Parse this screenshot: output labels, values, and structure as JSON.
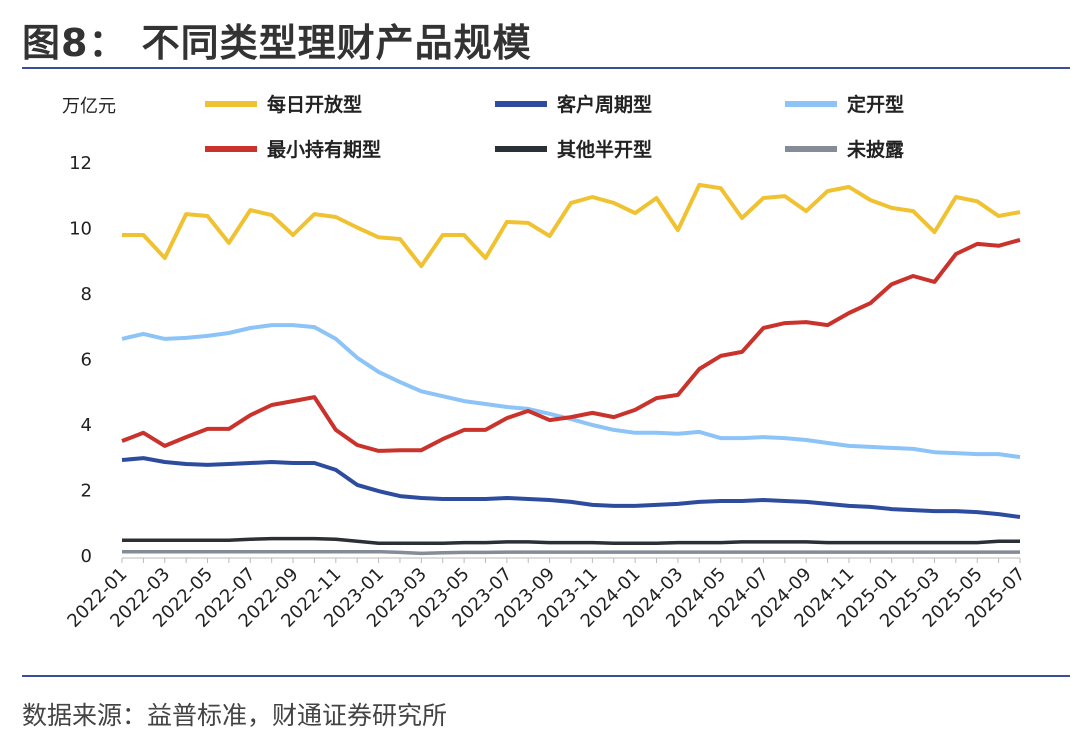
{
  "title": "图8： 不同类型理财产品规模",
  "source": "数据来源：益普标准，财通证券研究所",
  "chart_data": {
    "type": "line",
    "title": "图8： 不同类型理财产品规模",
    "ylabel": "万亿元",
    "ylim": [
      0,
      12
    ],
    "yticks": [
      0,
      2,
      4,
      6,
      8,
      10,
      12
    ],
    "grid": false,
    "legend": "top",
    "x": [
      "2022-01",
      "2022-02",
      "2022-03",
      "2022-04",
      "2022-05",
      "2022-06",
      "2022-07",
      "2022-08",
      "2022-09",
      "2022-10",
      "2022-11",
      "2022-12",
      "2023-01",
      "2023-02",
      "2023-03",
      "2023-04",
      "2023-05",
      "2023-06",
      "2023-07",
      "2023-08",
      "2023-09",
      "2023-10",
      "2023-11",
      "2023-12",
      "2024-01",
      "2024-02",
      "2024-03",
      "2024-04",
      "2024-05",
      "2024-06",
      "2024-07",
      "2024-08",
      "2024-09",
      "2024-10",
      "2024-11",
      "2024-12",
      "2025-01",
      "2025-02",
      "2025-03",
      "2025-04",
      "2025-05",
      "2025-06",
      "2025-07"
    ],
    "xtick_labels": [
      "2022-01",
      "2022-03",
      "2022-05",
      "2022-07",
      "2022-09",
      "2022-11",
      "2023-01",
      "2023-03",
      "2023-05",
      "2023-07",
      "2023-09",
      "2023-11",
      "2024-01",
      "2024-03",
      "2024-05",
      "2024-07",
      "2024-09",
      "2024-11",
      "2025-01",
      "2025-03",
      "2025-05",
      "2025-07"
    ],
    "series": [
      {
        "name": "每日开放型",
        "color": "#f0c232",
        "values": [
          9.77,
          9.77,
          9.07,
          10.41,
          10.35,
          9.53,
          10.53,
          10.38,
          9.77,
          10.41,
          10.32,
          10.0,
          9.7,
          9.65,
          8.82,
          9.77,
          9.77,
          9.07,
          10.17,
          10.14,
          9.74,
          10.75,
          10.93,
          10.75,
          10.44,
          10.9,
          9.92,
          11.3,
          11.2,
          10.29,
          10.9,
          10.96,
          10.5,
          11.11,
          11.24,
          10.84,
          10.6,
          10.5,
          9.86,
          10.93,
          10.8,
          10.35,
          10.47
        ]
      },
      {
        "name": "客户周期型",
        "color": "#2e4c9e",
        "values": [
          2.9,
          2.96,
          2.84,
          2.78,
          2.75,
          2.78,
          2.81,
          2.84,
          2.81,
          2.81,
          2.6,
          2.14,
          1.95,
          1.8,
          1.74,
          1.71,
          1.71,
          1.71,
          1.74,
          1.71,
          1.68,
          1.62,
          1.53,
          1.5,
          1.5,
          1.53,
          1.56,
          1.62,
          1.65,
          1.65,
          1.68,
          1.65,
          1.62,
          1.56,
          1.5,
          1.47,
          1.4,
          1.37,
          1.34,
          1.34,
          1.31,
          1.25,
          1.16
        ]
      },
      {
        "name": "定开型",
        "color": "#8cc4f7",
        "values": [
          6.6,
          6.75,
          6.6,
          6.63,
          6.69,
          6.78,
          6.93,
          7.02,
          7.02,
          6.96,
          6.6,
          6.02,
          5.59,
          5.28,
          5.0,
          4.85,
          4.7,
          4.61,
          4.52,
          4.46,
          4.31,
          4.15,
          3.97,
          3.82,
          3.73,
          3.73,
          3.7,
          3.76,
          3.57,
          3.57,
          3.6,
          3.57,
          3.51,
          3.42,
          3.33,
          3.3,
          3.27,
          3.24,
          3.14,
          3.11,
          3.08,
          3.08,
          2.99
        ]
      },
      {
        "name": "最小持有期型",
        "color": "#c9332c",
        "values": [
          3.48,
          3.73,
          3.33,
          3.6,
          3.85,
          3.85,
          4.27,
          4.58,
          4.7,
          4.82,
          3.82,
          3.36,
          3.18,
          3.2,
          3.2,
          3.54,
          3.82,
          3.82,
          4.18,
          4.4,
          4.12,
          4.21,
          4.34,
          4.21,
          4.43,
          4.79,
          4.89,
          5.68,
          6.08,
          6.2,
          6.93,
          7.08,
          7.11,
          7.02,
          7.39,
          7.69,
          8.27,
          8.52,
          8.34,
          9.19,
          9.5,
          9.44,
          9.62
        ]
      },
      {
        "name": "其他半开型",
        "color": "#2b2f36",
        "values": [
          0.45,
          0.45,
          0.45,
          0.45,
          0.45,
          0.45,
          0.48,
          0.5,
          0.5,
          0.5,
          0.48,
          0.42,
          0.36,
          0.36,
          0.36,
          0.36,
          0.38,
          0.38,
          0.4,
          0.4,
          0.38,
          0.38,
          0.38,
          0.36,
          0.36,
          0.36,
          0.38,
          0.38,
          0.38,
          0.4,
          0.4,
          0.4,
          0.4,
          0.38,
          0.38,
          0.38,
          0.38,
          0.38,
          0.38,
          0.38,
          0.38,
          0.42,
          0.42
        ]
      },
      {
        "name": "未披露",
        "color": "#868b98",
        "values": [
          0.1,
          0.1,
          0.1,
          0.1,
          0.1,
          0.1,
          0.1,
          0.1,
          0.1,
          0.1,
          0.1,
          0.1,
          0.1,
          0.08,
          0.05,
          0.07,
          0.08,
          0.08,
          0.09,
          0.09,
          0.09,
          0.09,
          0.09,
          0.09,
          0.09,
          0.09,
          0.09,
          0.09,
          0.09,
          0.09,
          0.09,
          0.09,
          0.09,
          0.09,
          0.09,
          0.09,
          0.09,
          0.09,
          0.09,
          0.09,
          0.09,
          0.09,
          0.09
        ]
      }
    ]
  }
}
